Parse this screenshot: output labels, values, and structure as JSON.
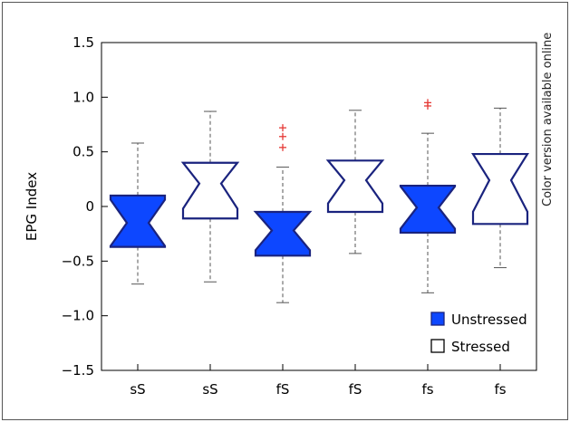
{
  "side_note": "Color version available online",
  "colors": {
    "edge": "#1a237e",
    "unstressed_fill": "#0d47ff",
    "stressed_fill": "#ffffff",
    "whisker": "#555555",
    "outlier": "#e53935",
    "frame": "#000000"
  },
  "chart_data": {
    "type": "boxplot",
    "ylabel": "EPG Index",
    "ylim": [
      -1.5,
      1.5
    ],
    "yticks": [
      -1.5,
      -1.0,
      -0.5,
      0,
      0.5,
      1.0,
      1.5
    ],
    "ytick_labels": [
      "−1.5",
      "−1.0",
      "−0.5",
      "0",
      "0.5",
      "1.0",
      "1.5"
    ],
    "categories": [
      "sS",
      "sS",
      "fS",
      "fS",
      "fs",
      "fs"
    ],
    "notched": true,
    "legend": {
      "position": "bottom-right",
      "entries": [
        {
          "label": "Unstressed",
          "series": "unstressed"
        },
        {
          "label": "Stressed",
          "series": "stressed"
        }
      ]
    },
    "boxes": [
      {
        "category": "sS",
        "series": "unstressed",
        "whisker_low": -0.71,
        "q1": -0.37,
        "median": -0.15,
        "q3": 0.1,
        "whisker_high": 0.58,
        "outliers": []
      },
      {
        "category": "sS",
        "series": "stressed",
        "whisker_low": -0.69,
        "q1": -0.11,
        "median": 0.21,
        "q3": 0.4,
        "whisker_high": 0.87,
        "outliers": []
      },
      {
        "category": "fS",
        "series": "unstressed",
        "whisker_low": -0.88,
        "q1": -0.45,
        "median": -0.22,
        "q3": -0.05,
        "whisker_high": 0.36,
        "outliers": [
          0.54,
          0.64,
          0.72
        ]
      },
      {
        "category": "fS",
        "series": "stressed",
        "whisker_low": -0.43,
        "q1": -0.05,
        "median": 0.24,
        "q3": 0.42,
        "whisker_high": 0.88,
        "outliers": []
      },
      {
        "category": "fs",
        "series": "unstressed",
        "whisker_low": -0.79,
        "q1": -0.24,
        "median": -0.01,
        "q3": 0.19,
        "whisker_high": 0.67,
        "outliers": [
          0.92,
          0.95
        ]
      },
      {
        "category": "fs",
        "series": "stressed",
        "whisker_low": -0.56,
        "q1": -0.16,
        "median": 0.24,
        "q3": 0.48,
        "whisker_high": 0.9,
        "outliers": []
      }
    ]
  }
}
